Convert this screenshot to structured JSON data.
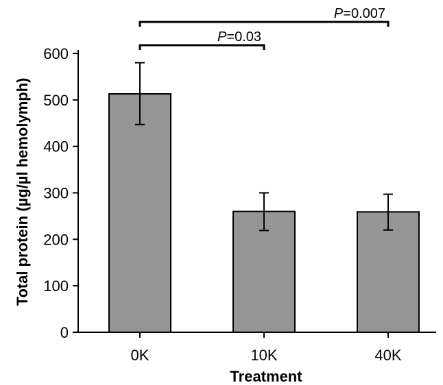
{
  "chart_data": {
    "type": "bar",
    "xlabel": "Treatment",
    "ylabel": "Total protein (µg/µl hemolymph)",
    "categories": [
      "0K",
      "10K",
      "40K"
    ],
    "values": [
      513,
      260,
      259
    ],
    "error_upper": [
      580,
      300,
      297
    ],
    "error_lower": [
      447,
      219,
      220
    ],
    "ylim": [
      0,
      600
    ],
    "yticks": [
      0,
      100,
      200,
      300,
      400,
      500,
      600
    ],
    "bar_color": "#959595",
    "grid": false,
    "legend": "none",
    "significance": [
      {
        "from": "0K",
        "to": "10K",
        "p_label": "P",
        "p_value": "=0.03"
      },
      {
        "from": "0K",
        "to": "40K",
        "p_label": "P",
        "p_value": "=0.007"
      }
    ]
  }
}
